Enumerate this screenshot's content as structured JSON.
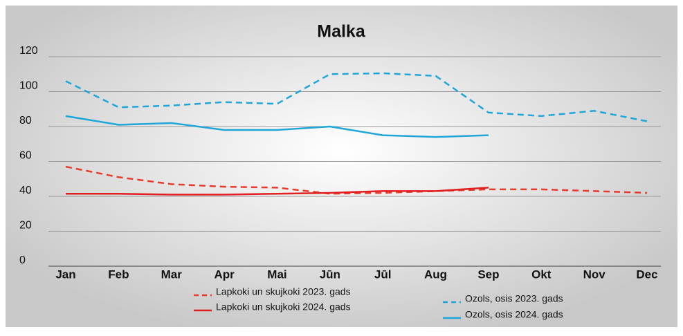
{
  "chart_data": {
    "type": "line",
    "title": "Malka",
    "categories": [
      "Jan",
      "Feb",
      "Mar",
      "Apr",
      "Mai",
      "Jūn",
      "Jūl",
      "Aug",
      "Sep",
      "Okt",
      "Nov",
      "Dec"
    ],
    "ylim": [
      0,
      120
    ],
    "yticks": [
      0,
      20,
      40,
      60,
      80,
      100,
      120
    ],
    "grid": true,
    "series": [
      {
        "name": "Lapkoki un skujkoki 2023. gads",
        "color": "#e8392b",
        "dashed": true,
        "values": [
          57,
          51,
          47,
          45.5,
          45,
          41.5,
          42,
          43,
          44,
          44,
          43,
          42
        ]
      },
      {
        "name": "Lapkoki un skujkoki 2024. gads",
        "color": "#e02020",
        "dashed": false,
        "values": [
          41.5,
          41.5,
          41,
          41,
          41.5,
          42,
          43,
          43,
          45,
          null,
          null,
          null
        ]
      },
      {
        "name": "Ozols, osis 2023. gads",
        "color": "#1fa6d9",
        "dashed": true,
        "values": [
          106,
          91,
          92,
          94,
          93,
          110,
          110.5,
          109,
          88,
          86,
          89,
          83
        ]
      },
      {
        "name": "Ozols, osis 2024. gads",
        "color": "#1fa6d9",
        "dashed": false,
        "values": [
          86,
          81,
          82,
          78,
          78,
          80,
          75,
          74,
          75,
          null,
          null,
          null
        ]
      }
    ]
  }
}
